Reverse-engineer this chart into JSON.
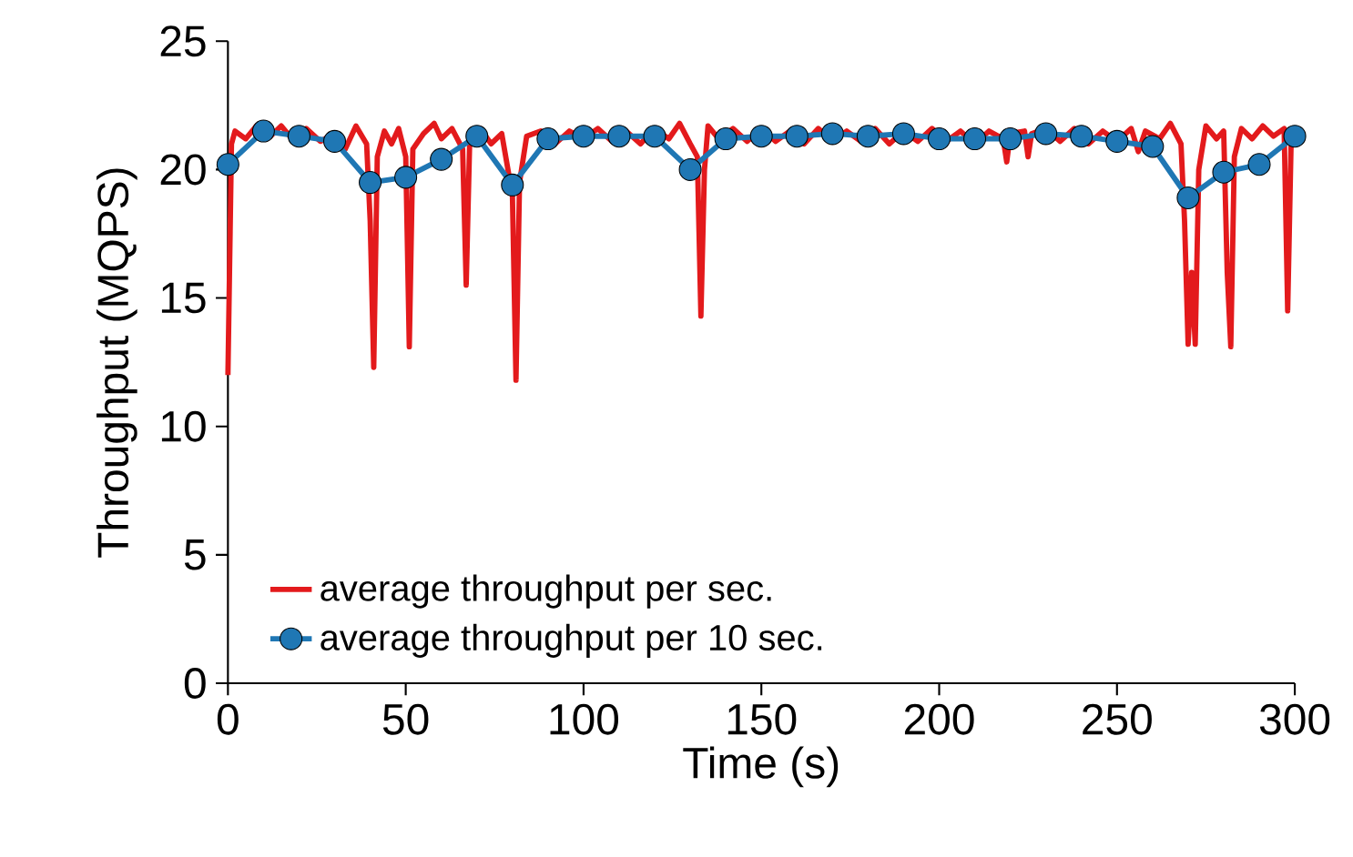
{
  "chart_data": {
    "type": "line",
    "xlabel": "Time (s)",
    "ylabel": "Throughput (MQPS)",
    "xlim": [
      0,
      300
    ],
    "ylim": [
      0,
      25
    ],
    "xticks": [
      0,
      50,
      100,
      150,
      200,
      250,
      300
    ],
    "yticks": [
      0,
      5,
      10,
      15,
      20,
      25
    ],
    "grid": false,
    "legend": "bottom left",
    "series": [
      {
        "name": "average throughput per sec.",
        "color": "#e31a1c",
        "marker": "none",
        "x": [
          0,
          1,
          2,
          5,
          8,
          12,
          15,
          18,
          22,
          26,
          30,
          33,
          36,
          39,
          40,
          41,
          42,
          44,
          46,
          48,
          50,
          51,
          52,
          55,
          58,
          60,
          63,
          66,
          67,
          68,
          71,
          74,
          77,
          80,
          81,
          82,
          84,
          88,
          92,
          96,
          100,
          104,
          108,
          112,
          116,
          120,
          124,
          127,
          130,
          132,
          133,
          134,
          135,
          138,
          142,
          146,
          150,
          154,
          158,
          162,
          166,
          170,
          174,
          178,
          182,
          186,
          190,
          194,
          198,
          202,
          206,
          210,
          214,
          218,
          219,
          220,
          224,
          225,
          226,
          230,
          234,
          238,
          242,
          246,
          250,
          254,
          256,
          258,
          262,
          265,
          268,
          269,
          270,
          271,
          272,
          273,
          275,
          278,
          280,
          281,
          282,
          283,
          285,
          288,
          291,
          294,
          297,
          298,
          299
        ],
        "values": [
          12,
          21,
          21.5,
          21.2,
          21.7,
          21.3,
          21.7,
          21.2,
          21.6,
          21.1,
          21.4,
          20.8,
          21.7,
          21,
          18,
          12.3,
          20.5,
          21.5,
          21,
          21.6,
          20.5,
          13.1,
          20.8,
          21.4,
          21.8,
          21.2,
          21.6,
          20.8,
          15.5,
          21.2,
          21.6,
          21,
          21.4,
          19,
          11.8,
          19.5,
          21.3,
          21.5,
          21,
          21.5,
          21.2,
          21.6,
          21.1,
          21.5,
          21,
          21.6,
          21.2,
          21.8,
          21,
          20.5,
          14.3,
          20,
          21.7,
          21.2,
          21.6,
          21.1,
          21.6,
          21.1,
          21.5,
          21,
          21.6,
          21.1,
          21.5,
          21.1,
          21.6,
          21,
          21.5,
          21.1,
          21.6,
          21.1,
          21.5,
          21,
          21.5,
          21.2,
          20.3,
          21.4,
          21.5,
          20.5,
          21.4,
          21.6,
          21.1,
          21.6,
          21,
          21.5,
          21.1,
          21.6,
          20.7,
          21.5,
          21.2,
          21.8,
          21,
          18,
          13.2,
          16,
          13.2,
          20,
          21.7,
          21.2,
          21.5,
          16,
          13.1,
          20.5,
          21.6,
          21.2,
          21.7,
          21.3,
          21.6,
          14.5,
          21.3
        ]
      },
      {
        "name": "average throughput per 10 sec.",
        "color": "#1f77b4",
        "marker": "circle",
        "x": [
          0,
          10,
          20,
          30,
          40,
          50,
          60,
          70,
          80,
          90,
          100,
          110,
          120,
          130,
          140,
          150,
          160,
          170,
          180,
          190,
          200,
          210,
          220,
          230,
          240,
          250,
          260,
          270,
          280,
          290,
          300
        ],
        "values": [
          20.2,
          21.5,
          21.3,
          21.1,
          19.5,
          19.7,
          20.4,
          21.3,
          19.4,
          21.2,
          21.3,
          21.3,
          21.3,
          20,
          21.2,
          21.3,
          21.3,
          21.4,
          21.3,
          21.4,
          21.2,
          21.2,
          21.2,
          21.4,
          21.3,
          21.1,
          20.9,
          18.9,
          19.9,
          20.2,
          21.3
        ]
      }
    ]
  }
}
